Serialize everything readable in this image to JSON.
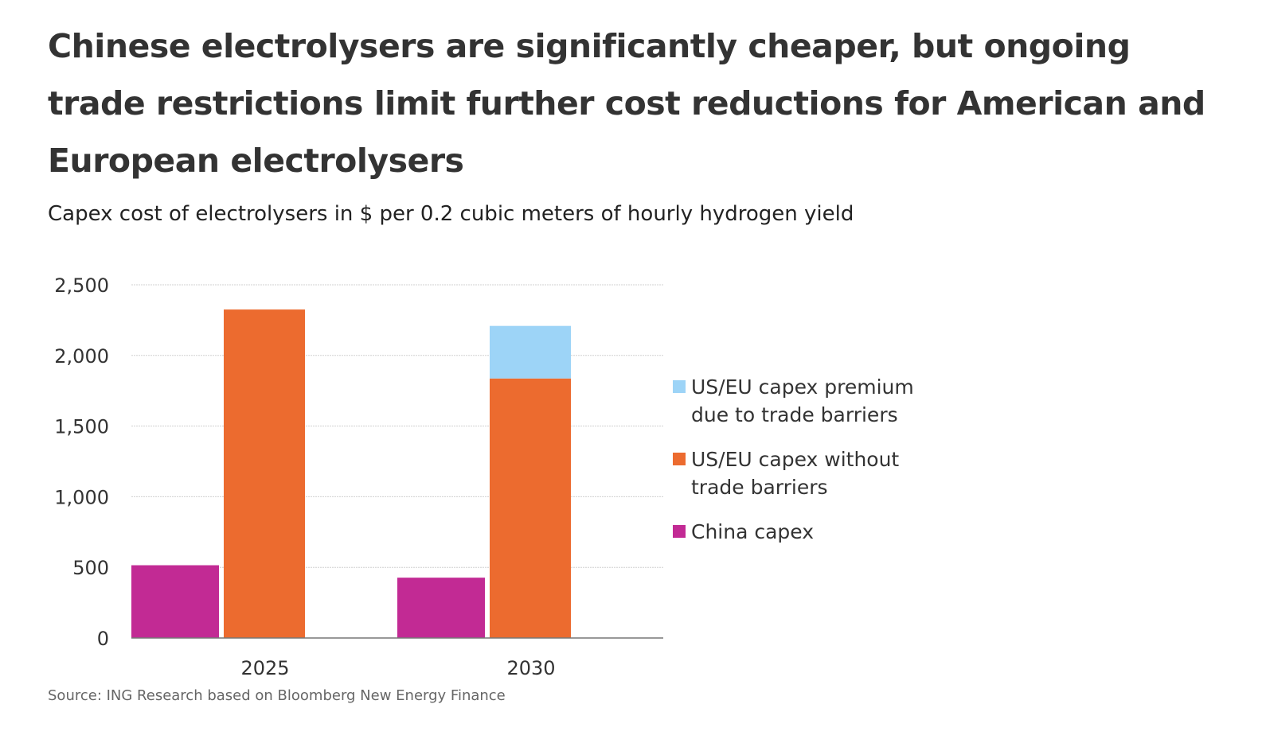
{
  "title": "Chinese electrolysers are significantly cheaper, but ongoing trade restrictions limit further cost reductions for American and European electrolysers",
  "subtitle": "Capex cost of electrolysers in $ per 0.2 cubic meters of hourly hydrogen yield",
  "source": "Source: ING Research based on Bloomberg New Energy Finance",
  "chart_data": {
    "type": "bar",
    "categories": [
      "2025",
      "2030"
    ],
    "ylim": [
      0,
      2500
    ],
    "yticks": [
      "0",
      "500",
      "1,000",
      "1,500",
      "2,000",
      "2,500"
    ],
    "grid": true,
    "legend_position": "right",
    "series": [
      {
        "name": "China capex",
        "color": "#c22a94",
        "values": [
          515,
          427
        ]
      },
      {
        "name": "US/EU capex without trade barriers",
        "color": "#ec6b2f",
        "values": [
          2325,
          1837
        ],
        "stack": "useu"
      },
      {
        "name": "US/EU capex premium due to trade barriers",
        "color": "#9dd4f7",
        "values": [
          0,
          372
        ],
        "stack": "useu"
      }
    ],
    "legend": [
      {
        "lines": [
          "US/EU capex premium",
          "due to trade barriers"
        ],
        "color": "#9dd4f7"
      },
      {
        "lines": [
          "US/EU capex without",
          "trade barriers"
        ],
        "color": "#ec6b2f"
      },
      {
        "lines": [
          "China capex"
        ],
        "color": "#c22a94"
      }
    ]
  }
}
